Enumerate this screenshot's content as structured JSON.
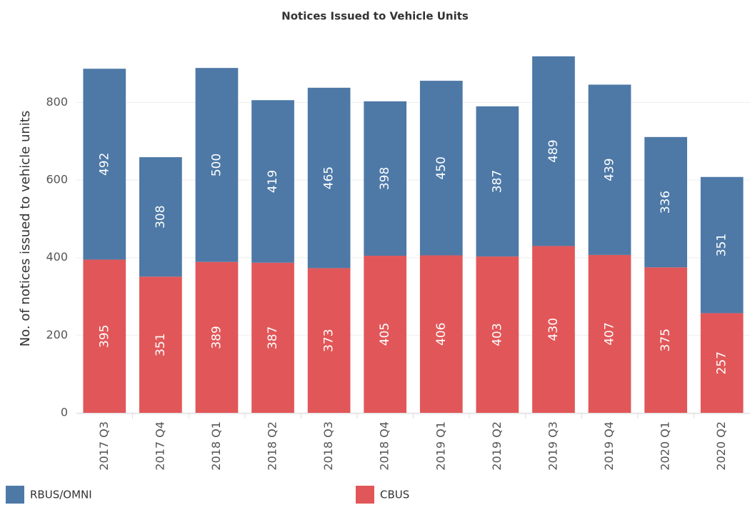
{
  "chart_data": {
    "type": "stacked_bar",
    "title": "Notices Issued to Vehicle Units",
    "y_label": "No. of notices issued to vehicle units",
    "categories": [
      "2017 Q3",
      "2017 Q4",
      "2018 Q1",
      "2018 Q2",
      "2018 Q3",
      "2018 Q4",
      "2019 Q1",
      "2019 Q2",
      "2019 Q3",
      "2019 Q4",
      "2020 Q1",
      "2020 Q2"
    ],
    "series": [
      {
        "name": "RBUS/OMNI",
        "color": "#4e79a7",
        "values": [
          492,
          308,
          500,
          419,
          465,
          398,
          450,
          387,
          489,
          439,
          336,
          351
        ]
      },
      {
        "name": "CBUS",
        "color": "#e15759",
        "values": [
          395,
          351,
          389,
          387,
          373,
          405,
          406,
          403,
          430,
          407,
          375,
          257
        ]
      }
    ],
    "ylim": [
      0,
      950
    ],
    "yticks": [
      0,
      200,
      400,
      600,
      800
    ],
    "grid": true,
    "legend": "bottom"
  }
}
